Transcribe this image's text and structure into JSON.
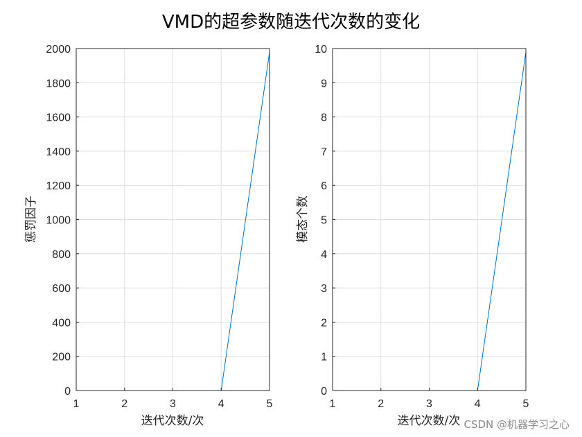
{
  "figure": {
    "title": "VMD的超参数随迭代次数的变化",
    "watermark": "CSDN @机器学习之心"
  },
  "chart_data": [
    {
      "type": "line",
      "title": "",
      "xlabel": "迭代次数/次",
      "ylabel": "惩罚因子",
      "xlim": [
        1,
        5
      ],
      "ylim": [
        0,
        2000
      ],
      "xticks": [
        1,
        2,
        3,
        4,
        5
      ],
      "yticks": [
        0,
        200,
        400,
        600,
        800,
        1000,
        1200,
        1400,
        1600,
        1800,
        2000
      ],
      "grid": true,
      "series": [
        {
          "x": [
            1,
            2,
            3,
            4,
            5
          ],
          "y": [
            0,
            0,
            0,
            0,
            1980
          ],
          "color": "#0072BD"
        }
      ]
    },
    {
      "type": "line",
      "title": "",
      "xlabel": "迭代次数/次",
      "ylabel": "模态个数",
      "xlim": [
        1,
        5
      ],
      "ylim": [
        0,
        10
      ],
      "xticks": [
        1,
        2,
        3,
        4,
        5
      ],
      "yticks": [
        0,
        1,
        2,
        3,
        4,
        5,
        6,
        7,
        8,
        9,
        10
      ],
      "grid": true,
      "series": [
        {
          "x": [
            1,
            2,
            3,
            4,
            5
          ],
          "y": [
            0,
            0,
            0,
            0,
            9.9
          ],
          "color": "#0072BD"
        }
      ]
    }
  ]
}
